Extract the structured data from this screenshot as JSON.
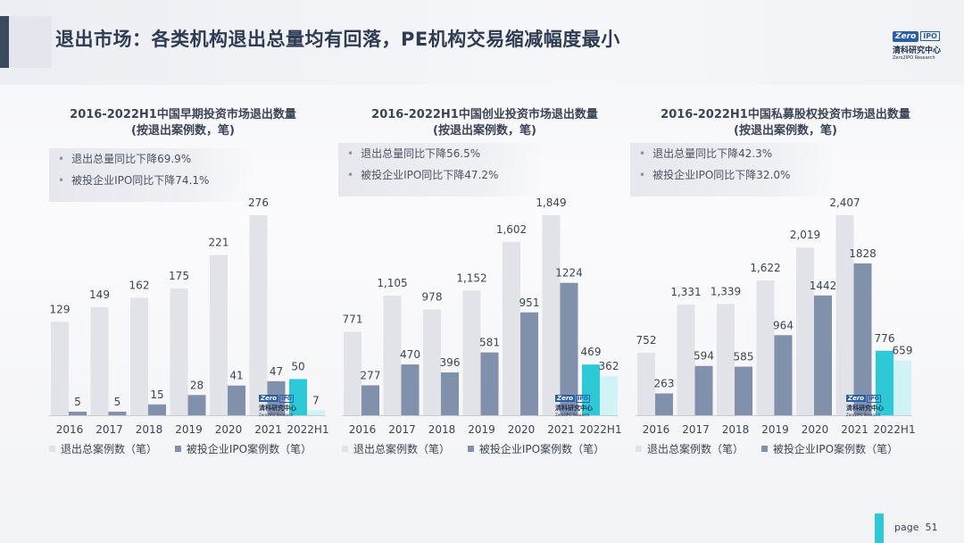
{
  "header": {
    "title": "退出市场：各类机构退出总量均有回落，PE机构交易缩减幅度最小",
    "logo": {
      "mark_left": "Zero",
      "mark_right": "IPO",
      "cn": "清科研究中心",
      "en": "Zero2IPO Research"
    }
  },
  "colors": {
    "total_bar": "#e1e3e9",
    "ipo_bar": "#8291ab",
    "highlight_total": "#2ec9d6",
    "highlight_ipo": "#d2f3f6"
  },
  "legend": {
    "total_label": "退出总案例数（笔）",
    "ipo_label": "被投企业IPO案例数（笔）"
  },
  "chart_data": [
    {
      "type": "bar",
      "title": "2016-2022H1中国早期投资市场退出数量",
      "subtitle": "(按退出案例数，笔)",
      "notes": [
        "退出总量同比下降69.9%",
        "被投企业IPO同比下降74.1%"
      ],
      "categories": [
        "2016",
        "2017",
        "2018",
        "2019",
        "2020",
        "2021",
        "2022H1"
      ],
      "series": [
        {
          "name": "退出总案例数（笔）",
          "values": [
            129,
            149,
            162,
            175,
            221,
            276,
            50
          ]
        },
        {
          "name": "被投企业IPO案例数（笔）",
          "values": [
            5,
            5,
            15,
            28,
            41,
            47,
            7
          ]
        }
      ],
      "ylim": [
        0,
        276
      ]
    },
    {
      "type": "bar",
      "title": "2016-2022H1中国创业投资市场退出数量",
      "subtitle": "(按退出案例数，笔)",
      "notes": [
        "退出总量同比下降56.5%",
        "被投企业IPO同比下降47.2%"
      ],
      "categories": [
        "2016",
        "2017",
        "2018",
        "2019",
        "2020",
        "2021",
        "2022H1"
      ],
      "series": [
        {
          "name": "退出总案例数（笔）",
          "values": [
            771,
            1105,
            978,
            1152,
            1602,
            1849,
            469
          ]
        },
        {
          "name": "被投企业IPO案例数（笔）",
          "values": [
            277,
            470,
            396,
            581,
            951,
            1224,
            362
          ]
        }
      ],
      "value_labels_total": [
        "771",
        "1,105",
        "978",
        "1,152",
        "1,602",
        "1,849",
        "469"
      ],
      "ylim": [
        0,
        1849
      ]
    },
    {
      "type": "bar",
      "title": "2016-2022H1中国私募股权投资市场退出数量",
      "subtitle": "(按退出案例数，笔)",
      "notes": [
        "退出总量同比下降42.3%",
        "被投企业IPO同比下降32.0%"
      ],
      "categories": [
        "2016",
        "2017",
        "2018",
        "2019",
        "2020",
        "2021",
        "2022H1"
      ],
      "series": [
        {
          "name": "退出总案例数（笔）",
          "values": [
            752,
            1331,
            1339,
            1622,
            2019,
            2407,
            776
          ]
        },
        {
          "name": "被投企业IPO案例数（笔）",
          "values": [
            263,
            594,
            585,
            964,
            1442,
            1828,
            659
          ]
        }
      ],
      "value_labels_total": [
        "752",
        "1,331",
        "1,339",
        "1,622",
        "2,019",
        "2,407",
        "776"
      ],
      "ylim": [
        0,
        2407
      ]
    }
  ],
  "footer": {
    "page_label": "page",
    "page_number": "51"
  }
}
